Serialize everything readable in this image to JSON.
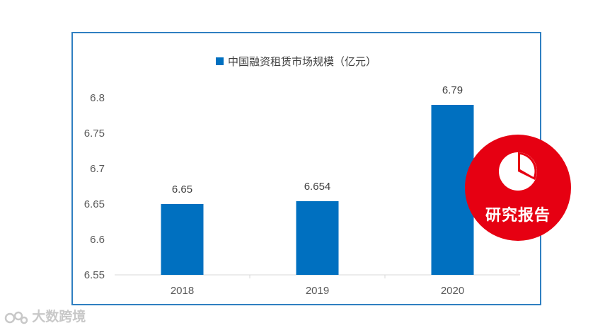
{
  "colors": {
    "bar": "#0070c0",
    "frame": "#2f7fc1",
    "badge": "#e60012",
    "axis": "#d9d9d9"
  },
  "chart_data": {
    "type": "bar",
    "categories": [
      "2018",
      "2019",
      "2020"
    ],
    "series": [
      {
        "name": "中国融资租赁市场规模（亿元）",
        "values": [
          6.65,
          6.654,
          6.79
        ]
      }
    ],
    "data_labels": [
      "6.65",
      "6.654",
      "6.79"
    ],
    "y_ticks": [
      "6.8",
      "6.75",
      "6.7",
      "6.65",
      "6.6",
      "6.55"
    ],
    "ylim": [
      6.55,
      6.8
    ],
    "grid": false,
    "legend": "top-center"
  },
  "badge": {
    "label": "研究报告",
    "icon": "pie-chart-icon"
  },
  "watermark": {
    "text": "大数跨境"
  }
}
